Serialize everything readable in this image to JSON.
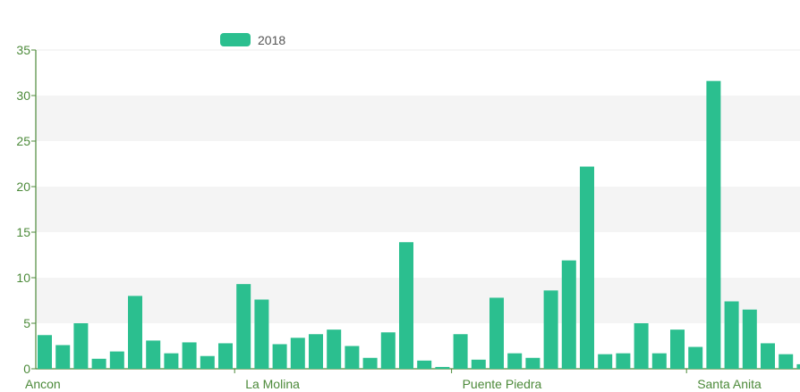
{
  "chart_data": {
    "type": "bar",
    "title": "",
    "xlabel": "",
    "ylabel": "",
    "ylim": [
      0,
      35
    ],
    "y_ticks": [
      0,
      5,
      10,
      15,
      20,
      25,
      30,
      35
    ],
    "grid": "horizontal bands",
    "legend_position": "top",
    "colors": {
      "bar": "#2bbf8f",
      "axis": "#4c8a3a",
      "band": "#f4f4f4"
    },
    "category_labels": [
      {
        "index": 0,
        "text": "Ancon"
      },
      {
        "index": 11,
        "text": "La Molina"
      },
      {
        "index": 23,
        "text": "Puente Piedra"
      },
      {
        "index": 36,
        "text": "Santa Anita"
      }
    ],
    "series": [
      {
        "name": "2018",
        "values": [
          3.7,
          2.6,
          5.0,
          1.1,
          1.9,
          8.0,
          3.1,
          1.7,
          2.9,
          1.4,
          2.8,
          9.3,
          7.6,
          2.7,
          3.4,
          3.8,
          4.3,
          2.5,
          1.2,
          4.0,
          13.9,
          0.9,
          0.2,
          3.8,
          1.0,
          7.8,
          1.7,
          1.2,
          8.6,
          11.9,
          22.2,
          1.6,
          1.7,
          5.0,
          1.7,
          4.3,
          2.4,
          31.6,
          7.4,
          6.5,
          2.8,
          1.6,
          0.5
        ]
      }
    ]
  }
}
